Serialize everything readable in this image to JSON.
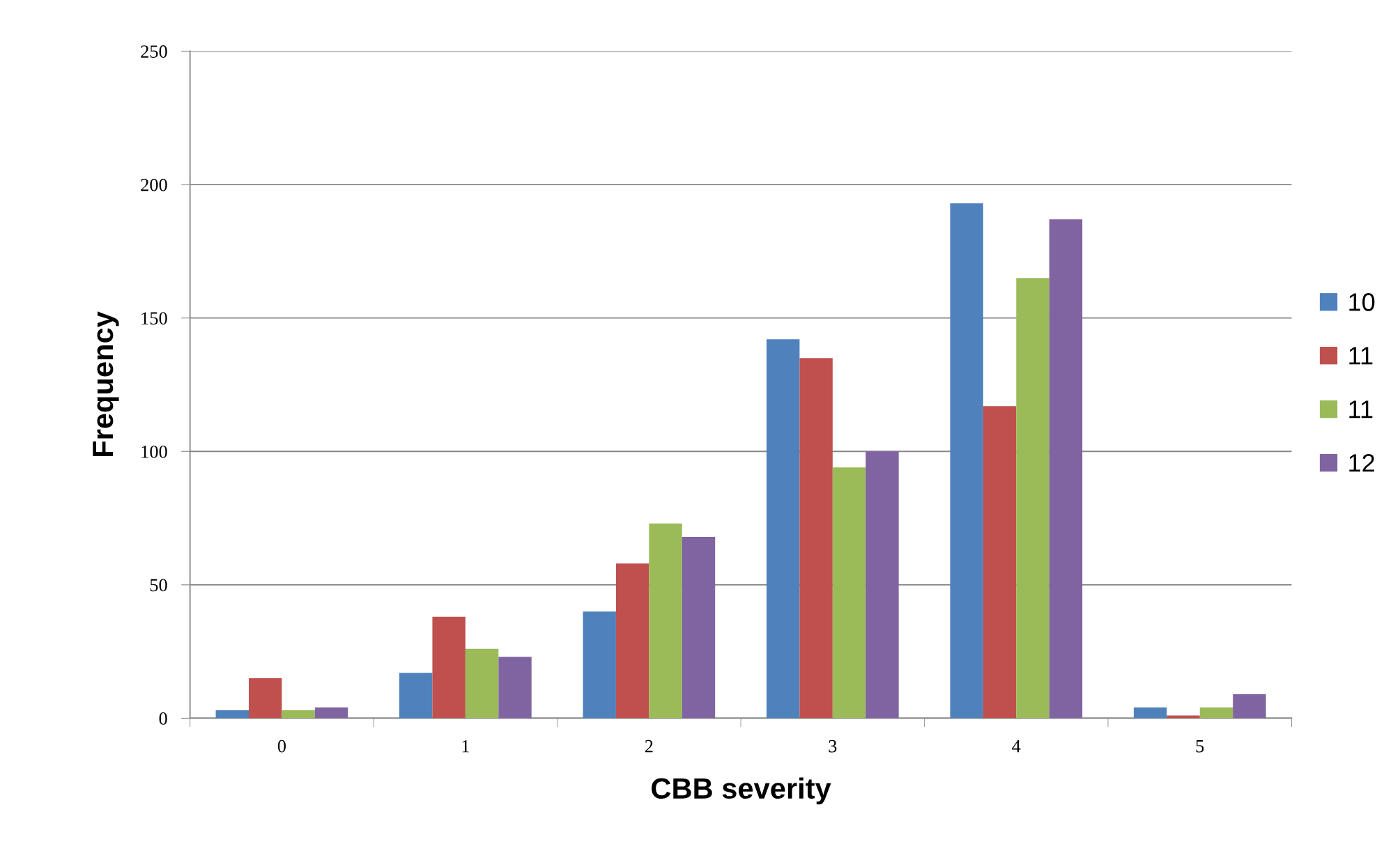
{
  "chart_data": {
    "type": "bar",
    "xlabel": "CBB severity",
    "ylabel": "Frequency",
    "categories": [
      "0",
      "1",
      "2",
      "3",
      "4",
      "5"
    ],
    "series": [
      {
        "name": "10",
        "color": "#4f81bd",
        "values": [
          3,
          17,
          40,
          142,
          193,
          4
        ]
      },
      {
        "name": "11",
        "color": "#c0504d",
        "values": [
          15,
          38,
          58,
          135,
          117,
          1
        ]
      },
      {
        "name": "11",
        "color": "#9bbb59",
        "values": [
          3,
          26,
          73,
          94,
          165,
          4
        ]
      },
      {
        "name": "12",
        "color": "#8064a2",
        "values": [
          4,
          23,
          68,
          100,
          187,
          9
        ]
      }
    ],
    "ylim": [
      0,
      250
    ],
    "yticks": [
      0,
      50,
      100,
      150,
      200,
      250
    ],
    "grid": "y",
    "legend": "right"
  }
}
